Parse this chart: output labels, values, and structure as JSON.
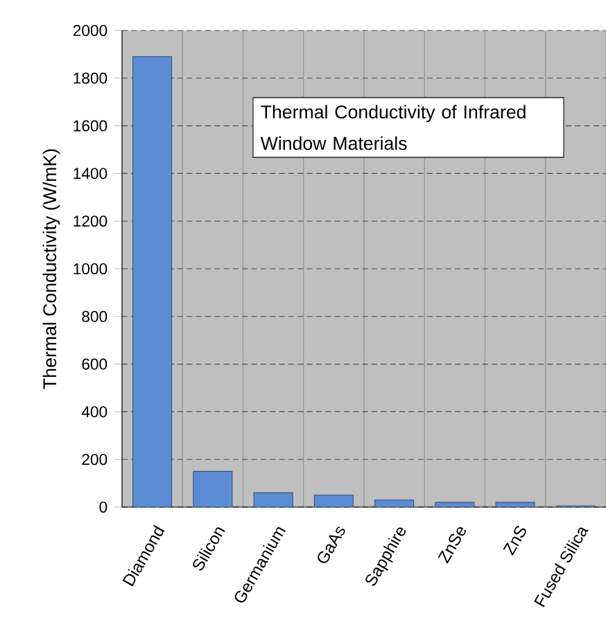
{
  "chart_data": {
    "type": "bar",
    "title": "Thermal Conductivity of Infrared Window Materials",
    "ylabel": "Thermal Conductivity (W/mK)",
    "categories": [
      "Diamond",
      "Silicon",
      "Germanium",
      "GaAs",
      "Sapphire",
      "ZnSe",
      "ZnS",
      "Fused Silica"
    ],
    "values": [
      1890,
      150,
      60,
      50,
      30,
      20,
      20,
      5
    ],
    "color": "#5b8bd4",
    "ylim": [
      0,
      2000
    ],
    "yticks": [
      0,
      200,
      400,
      600,
      800,
      1000,
      1200,
      1400,
      1600,
      1800,
      2000
    ],
    "grid": true
  }
}
